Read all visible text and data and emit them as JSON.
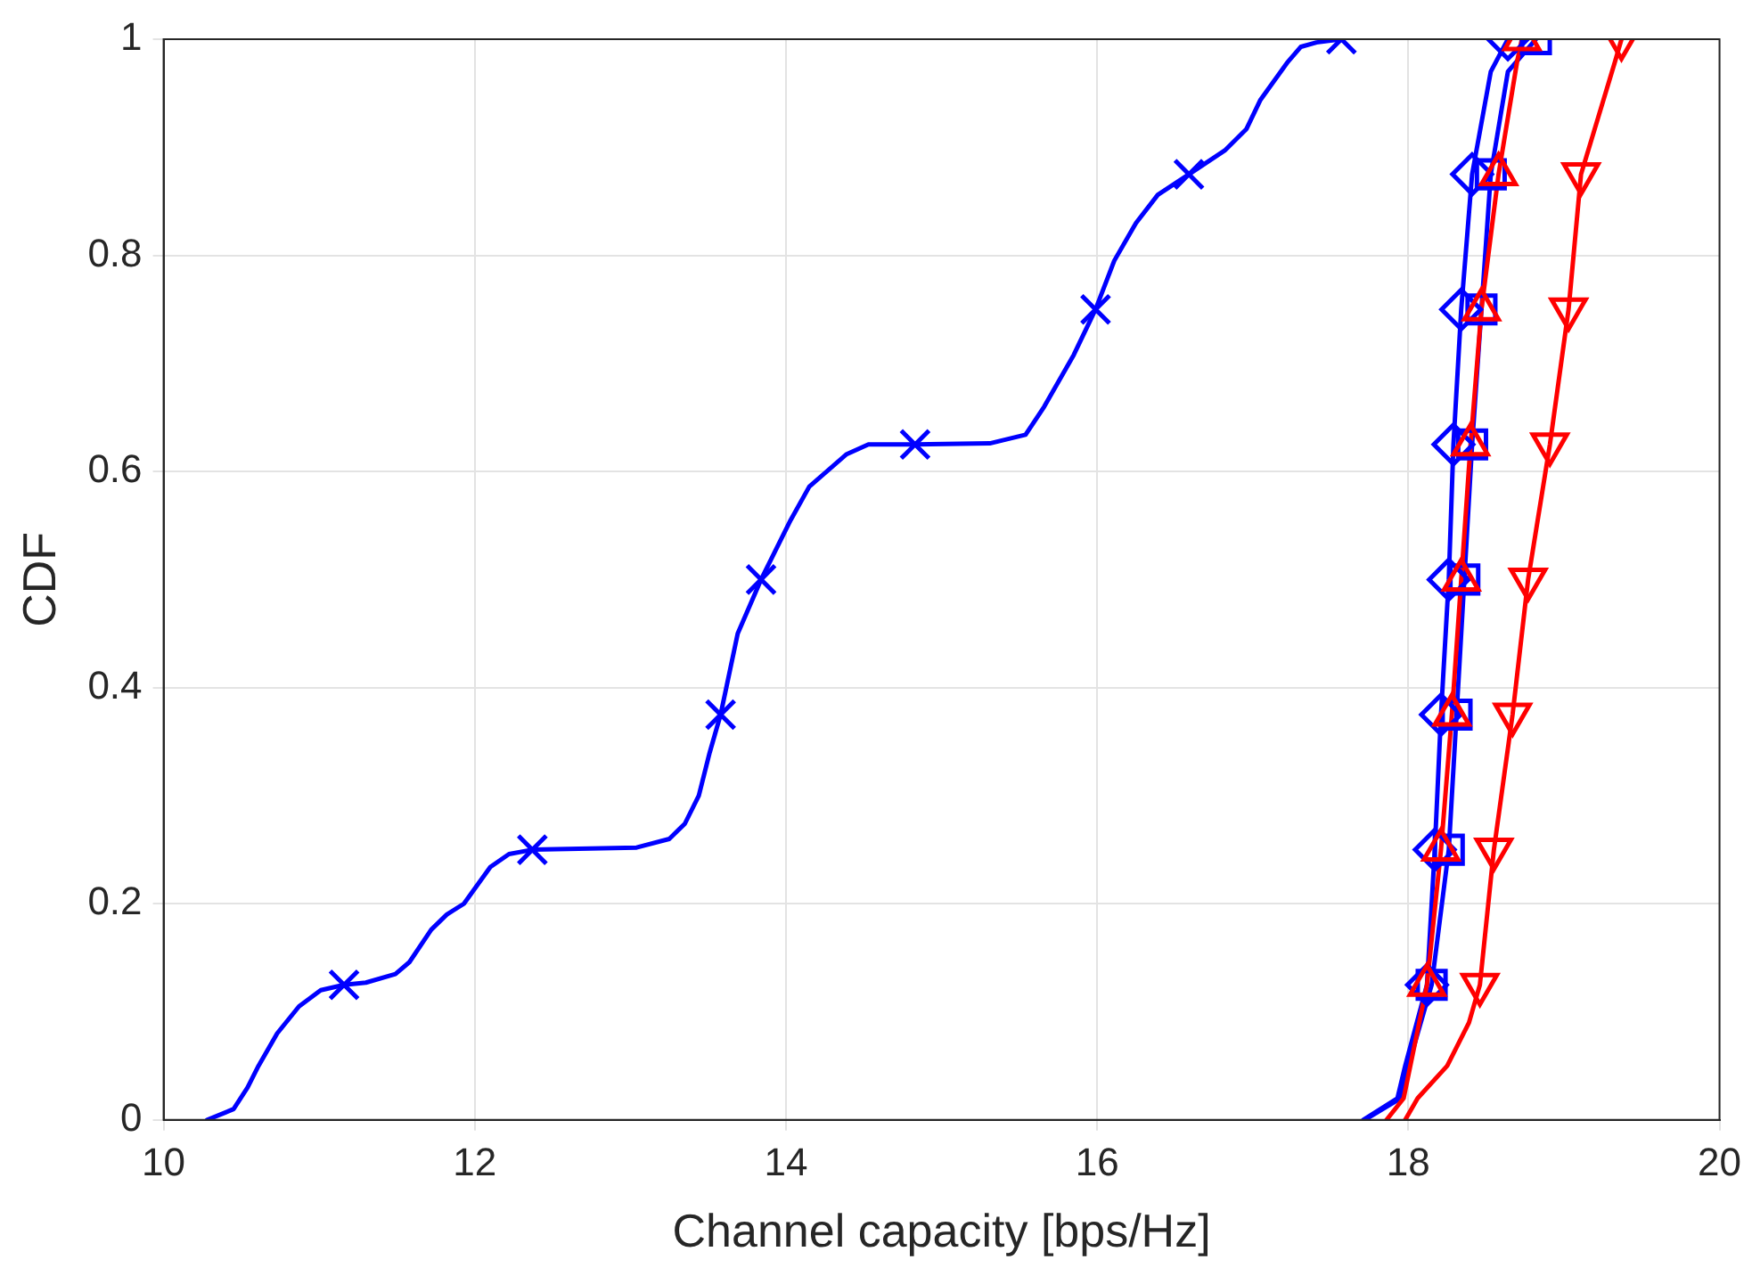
{
  "chart_data": {
    "type": "line",
    "xlabel": "Channel capacity [bps/Hz]",
    "ylabel": "CDF",
    "xlim": [
      10,
      20
    ],
    "xticks": [
      10,
      12,
      14,
      16,
      18,
      20
    ],
    "ylim": [
      0,
      1
    ],
    "yticks": [
      0,
      0.2,
      0.4,
      0.6,
      0.8,
      1
    ],
    "grid": true,
    "legend": false,
    "line_style": "solid",
    "series": [
      {
        "color": "#0000ff",
        "marker": "none",
        "x": [
          10.28,
          10.45,
          10.54,
          10.61,
          10.73,
          10.87,
          11.01,
          11.16,
          11.3,
          11.49,
          11.58,
          11.72,
          11.82,
          11.93,
          12.1,
          12.22,
          12.37,
          13.04,
          13.25,
          13.35,
          13.44,
          13.51,
          13.58,
          13.69,
          13.84,
          14.03,
          14.15,
          14.39,
          14.53,
          14.83,
          15.31,
          15.54,
          15.66,
          15.85,
          15.99,
          16.11,
          16.25,
          16.39,
          16.59,
          16.82,
          16.96,
          17.05,
          17.22,
          17.31,
          17.41,
          17.57
        ],
        "values": [
          0,
          0.01,
          0.03,
          0.05,
          0.08,
          0.105,
          0.12,
          0.125,
          0.127,
          0.135,
          0.146,
          0.176,
          0.19,
          0.2,
          0.234,
          0.246,
          0.25,
          0.252,
          0.26,
          0.274,
          0.3,
          0.34,
          0.375,
          0.45,
          0.5,
          0.555,
          0.586,
          0.616,
          0.625,
          0.625,
          0.626,
          0.634,
          0.66,
          0.708,
          0.75,
          0.795,
          0.83,
          0.856,
          0.875,
          0.897,
          0.917,
          0.944,
          0.978,
          0.993,
          0.997,
          1
        ]
      },
      {
        "color": "#0000ff",
        "marker": "none",
        "x": [
          17.71,
          17.93,
          17.98,
          18.12,
          18.17,
          18.21,
          18.26,
          18.29,
          18.34,
          18.41,
          18.53,
          18.64
        ],
        "values": [
          0,
          0.02,
          0.05,
          0.125,
          0.25,
          0.375,
          0.5,
          0.625,
          0.75,
          0.875,
          0.97,
          1
        ]
      },
      {
        "color": "#0000ff",
        "marker": "none",
        "x": [
          17.72,
          17.95,
          18,
          18.15,
          18.26,
          18.31,
          18.36,
          18.41,
          18.47,
          18.53,
          18.64,
          18.82
        ],
        "values": [
          0,
          0.02,
          0.05,
          0.125,
          0.25,
          0.375,
          0.5,
          0.625,
          0.75,
          0.875,
          0.97,
          1
        ]
      },
      {
        "color": "#ff0000",
        "marker": "none",
        "x": [
          17.86,
          17.97,
          18.12,
          18.21,
          18.28,
          18.34,
          18.4,
          18.47,
          18.58,
          18.7,
          18.73
        ],
        "values": [
          0,
          0.02,
          0.125,
          0.25,
          0.375,
          0.5,
          0.625,
          0.75,
          0.875,
          0.98,
          1
        ]
      },
      {
        "color": "#ff0000",
        "marker": "none",
        "x": [
          17.98,
          18.06,
          18.25,
          18.39,
          18.46,
          18.55,
          18.67,
          18.77,
          18.91,
          19.03,
          19.11,
          19.33,
          19.37
        ],
        "values": [
          0,
          0.02,
          0.05,
          0.09,
          0.125,
          0.25,
          0.375,
          0.5,
          0.625,
          0.75,
          0.875,
          0.98,
          1
        ]
      },
      {
        "type": "scatter",
        "color": "#0000ff",
        "marker": "cross",
        "x": [
          11.16,
          12.37,
          13.58,
          13.84,
          14.83,
          15.99,
          16.59,
          17.57
        ],
        "values": [
          0.125,
          0.25,
          0.375,
          0.5,
          0.625,
          0.75,
          0.875,
          1
        ]
      },
      {
        "type": "scatter",
        "color": "#0000ff",
        "marker": "diamond",
        "x": [
          18.12,
          18.17,
          18.21,
          18.26,
          18.29,
          18.34,
          18.41,
          18.64
        ],
        "values": [
          0.125,
          0.25,
          0.375,
          0.5,
          0.625,
          0.75,
          0.875,
          1
        ]
      },
      {
        "type": "scatter",
        "color": "#0000ff",
        "marker": "square",
        "x": [
          18.15,
          18.26,
          18.31,
          18.36,
          18.41,
          18.47,
          18.53,
          18.82
        ],
        "values": [
          0.125,
          0.25,
          0.375,
          0.5,
          0.625,
          0.75,
          0.875,
          1
        ]
      },
      {
        "type": "scatter",
        "color": "#ff0000",
        "marker": "triangle",
        "x": [
          18.12,
          18.21,
          18.28,
          18.34,
          18.4,
          18.47,
          18.58,
          18.73
        ],
        "values": [
          0.125,
          0.25,
          0.375,
          0.5,
          0.625,
          0.75,
          0.875,
          1
        ]
      },
      {
        "type": "scatter",
        "color": "#ff0000",
        "marker": "triangle-down",
        "x": [
          18.46,
          18.55,
          18.67,
          18.77,
          18.91,
          19.03,
          19.11,
          19.37
        ],
        "values": [
          0.125,
          0.25,
          0.375,
          0.5,
          0.625,
          0.75,
          0.875,
          1
        ]
      }
    ]
  }
}
